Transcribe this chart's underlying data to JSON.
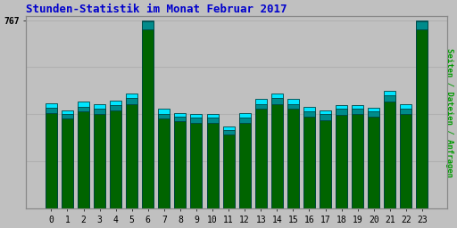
{
  "title": "Stunden-Statistik im Monat Februar 2017",
  "ylabel_right": "Seiten / Dateien / Anfragen",
  "categories": [
    0,
    1,
    2,
    3,
    4,
    5,
    6,
    7,
    8,
    9,
    10,
    11,
    12,
    13,
    14,
    15,
    16,
    17,
    18,
    19,
    20,
    21,
    22,
    23
  ],
  "anfragen": [
    430,
    400,
    435,
    425,
    440,
    470,
    767,
    405,
    390,
    385,
    385,
    335,
    390,
    445,
    470,
    445,
    415,
    400,
    420,
    420,
    410,
    480,
    425,
    767
  ],
  "dateien": [
    410,
    385,
    415,
    405,
    420,
    450,
    760,
    385,
    375,
    370,
    370,
    320,
    370,
    425,
    450,
    425,
    395,
    385,
    405,
    405,
    395,
    460,
    405,
    760
  ],
  "seiten": [
    390,
    365,
    395,
    385,
    400,
    425,
    730,
    365,
    355,
    350,
    350,
    300,
    350,
    405,
    425,
    405,
    375,
    360,
    380,
    385,
    375,
    435,
    385,
    730
  ],
  "ytick_value": 767,
  "ytick_label": "767",
  "bar_width": 0.72,
  "background_color": "#c0c0c0",
  "plot_bg_color": "#c0c0c0",
  "color_anfragen": "#00e5ff",
  "color_dateien": "#008b8b",
  "color_seiten": "#006400",
  "color_outline": "#004444",
  "title_color": "#0000cc",
  "ylabel_color": "#009900",
  "grid_color": "#b0b0b0"
}
